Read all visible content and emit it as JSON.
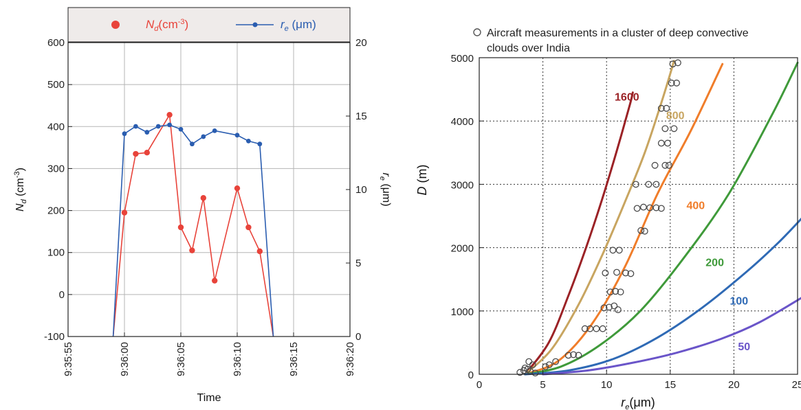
{
  "chart_data": [
    {
      "type": "line",
      "xlabel": "Time",
      "ylabel_left": {
        "symbol": "N",
        "sub": "d",
        "unit_pre": " (cm",
        "unit_exp": "-3",
        "unit_post": ")"
      },
      "ylabel_right": {
        "symbol": "r",
        "sub": "e",
        "unit": " (μm)"
      },
      "x_ticks": [
        "9:35:55",
        "9:36:00",
        "9:36:05",
        "9:36:10",
        "9:36:15",
        "9:36:20"
      ],
      "x_tick_seconds": [
        -5,
        0,
        5,
        10,
        15,
        20
      ],
      "xlim_seconds": [
        -5,
        20
      ],
      "ylim_left": [
        -100,
        600
      ],
      "y_ticks_left": [
        -100,
        0,
        100,
        200,
        300,
        400,
        500,
        600
      ],
      "ylim_right": [
        0,
        20
      ],
      "y_ticks_right": [
        0,
        5,
        10,
        15,
        20
      ],
      "grid": true,
      "legend_placement": "top",
      "series": [
        {
          "name": {
            "symbol": "N",
            "sub": "d",
            "unit_pre": "(cm",
            "unit_exp": "-3",
            "unit_post": ")"
          },
          "axis": "left",
          "color": "#e8433a",
          "x_seconds": [
            -1,
            0,
            1,
            2,
            4,
            5,
            6,
            7,
            8,
            10,
            11,
            12,
            13.2
          ],
          "values": [
            -100,
            195,
            335,
            338,
            428,
            160,
            105,
            230,
            33,
            253,
            160,
            103,
            -100
          ]
        },
        {
          "name": {
            "symbol": "r",
            "sub": "e",
            "unit": " (μm)"
          },
          "axis": "right",
          "color": "#2a5db0",
          "x_seconds": [
            -1,
            0,
            1,
            2,
            3,
            4,
            5,
            6,
            7,
            8,
            10,
            11,
            12,
            13.2
          ],
          "values": [
            0,
            13.8,
            14.3,
            13.9,
            14.3,
            14.4,
            14.1,
            13.1,
            13.6,
            14.0,
            13.7,
            13.3,
            13.1,
            0
          ]
        }
      ]
    },
    {
      "type": "scatter",
      "title": "Aircraft measurements in a cluster of deep convective clouds over India",
      "xlabel": {
        "symbol": "r",
        "sub": "e",
        "unit": "(μm)"
      },
      "ylabel": {
        "symbol": "D",
        "unit": " (m)"
      },
      "xlim": [
        0,
        25
      ],
      "ylim": [
        0,
        5000
      ],
      "x_ticks": [
        0,
        5,
        10,
        15,
        20,
        25
      ],
      "y_ticks": [
        0,
        1000,
        2000,
        3000,
        4000,
        5000
      ],
      "grid": "dotted",
      "legend_placement": "top",
      "measurements": {
        "name": "Aircraft measurements in a cluster of deep convective clouds over India",
        "points": [
          [
            3.2,
            30
          ],
          [
            3.5,
            60
          ],
          [
            3.8,
            80
          ],
          [
            4.0,
            50
          ],
          [
            3.6,
            100
          ],
          [
            4.2,
            150
          ],
          [
            4.4,
            20
          ],
          [
            3.9,
            200
          ],
          [
            5.2,
            120
          ],
          [
            5.5,
            150
          ],
          [
            6.0,
            200
          ],
          [
            7.0,
            300
          ],
          [
            7.4,
            310
          ],
          [
            7.8,
            300
          ],
          [
            8.3,
            720
          ],
          [
            8.7,
            720
          ],
          [
            9.2,
            720
          ],
          [
            9.7,
            720
          ],
          [
            9.8,
            1050
          ],
          [
            10.2,
            1060
          ],
          [
            10.6,
            1080
          ],
          [
            10.9,
            1020
          ],
          [
            10.3,
            1300
          ],
          [
            10.7,
            1310
          ],
          [
            11.1,
            1300
          ],
          [
            9.9,
            1600
          ],
          [
            10.8,
            1610
          ],
          [
            11.5,
            1600
          ],
          [
            11.9,
            1590
          ],
          [
            10.5,
            1960
          ],
          [
            11.0,
            1960
          ],
          [
            12.7,
            2270
          ],
          [
            13.0,
            2260
          ],
          [
            12.4,
            2620
          ],
          [
            12.9,
            2640
          ],
          [
            13.4,
            2630
          ],
          [
            13.9,
            2630
          ],
          [
            14.3,
            2620
          ],
          [
            12.3,
            3000
          ],
          [
            13.3,
            3000
          ],
          [
            13.9,
            3000
          ],
          [
            13.8,
            3300
          ],
          [
            14.6,
            3300
          ],
          [
            14.9,
            3300
          ],
          [
            14.3,
            3650
          ],
          [
            14.8,
            3650
          ],
          [
            14.6,
            3880
          ],
          [
            15.3,
            3880
          ],
          [
            14.3,
            4200
          ],
          [
            14.7,
            4200
          ],
          [
            15.1,
            4600
          ],
          [
            15.5,
            4600
          ],
          [
            15.2,
            4900
          ],
          [
            15.6,
            4920
          ]
        ]
      },
      "curves": [
        {
          "label": "1600",
          "color": "#9b2226",
          "x": [
            3.6,
            5.46,
            7.02,
            8.39,
            9.63,
            10.76,
            11.82,
            12.06
          ],
          "y": [
            0,
            500,
            1250,
            2000,
            2750,
            3500,
            4250,
            4450
          ]
        },
        {
          "label": "800",
          "color": "#c8a560",
          "x": [
            3.6,
            5.7,
            7.8,
            9.7,
            11.4,
            13.0,
            14.4,
            15.3
          ],
          "y": [
            0,
            400,
            1100,
            1900,
            2700,
            3500,
            4350,
            4950
          ]
        },
        {
          "label": "400",
          "color": "#f07d2a",
          "x": [
            3.6,
            6.2,
            8.8,
            11.4,
            14.0,
            16.6,
            19.1
          ],
          "y": [
            0,
            210,
            780,
            1680,
            2850,
            3840,
            4900
          ]
        },
        {
          "label": "200",
          "color": "#3f9a3a",
          "x": [
            3.6,
            6.4,
            9.4,
            12.6,
            16.0,
            19.6,
            23.0,
            25.0
          ],
          "y": [
            0,
            120,
            450,
            990,
            1820,
            2850,
            4100,
            4920
          ]
        },
        {
          "label": "100",
          "color": "#2f6ab5",
          "x": [
            3.6,
            7.0,
            10.5,
            14.0,
            17.5,
            21.0,
            23.5,
            25.5
          ],
          "y": [
            0,
            60,
            240,
            580,
            1050,
            1620,
            2080,
            2500
          ]
        },
        {
          "label": "50",
          "color": "#6a55c9",
          "x": [
            5.0,
            8.5,
            12.0,
            15.5,
            19.0,
            22.0,
            25.5
          ],
          "y": [
            0,
            60,
            180,
            340,
            560,
            820,
            1230
          ]
        }
      ],
      "curve_label_positions": [
        {
          "label": "1600",
          "x": 11.6,
          "y": 4320
        },
        {
          "label": "800",
          "x": 15.4,
          "y": 4030
        },
        {
          "label": "400",
          "x": 17.0,
          "y": 2610
        },
        {
          "label": "200",
          "x": 18.5,
          "y": 1710
        },
        {
          "label": "100",
          "x": 20.4,
          "y": 1100
        },
        {
          "label": "50",
          "x": 20.8,
          "y": 380
        }
      ]
    }
  ]
}
